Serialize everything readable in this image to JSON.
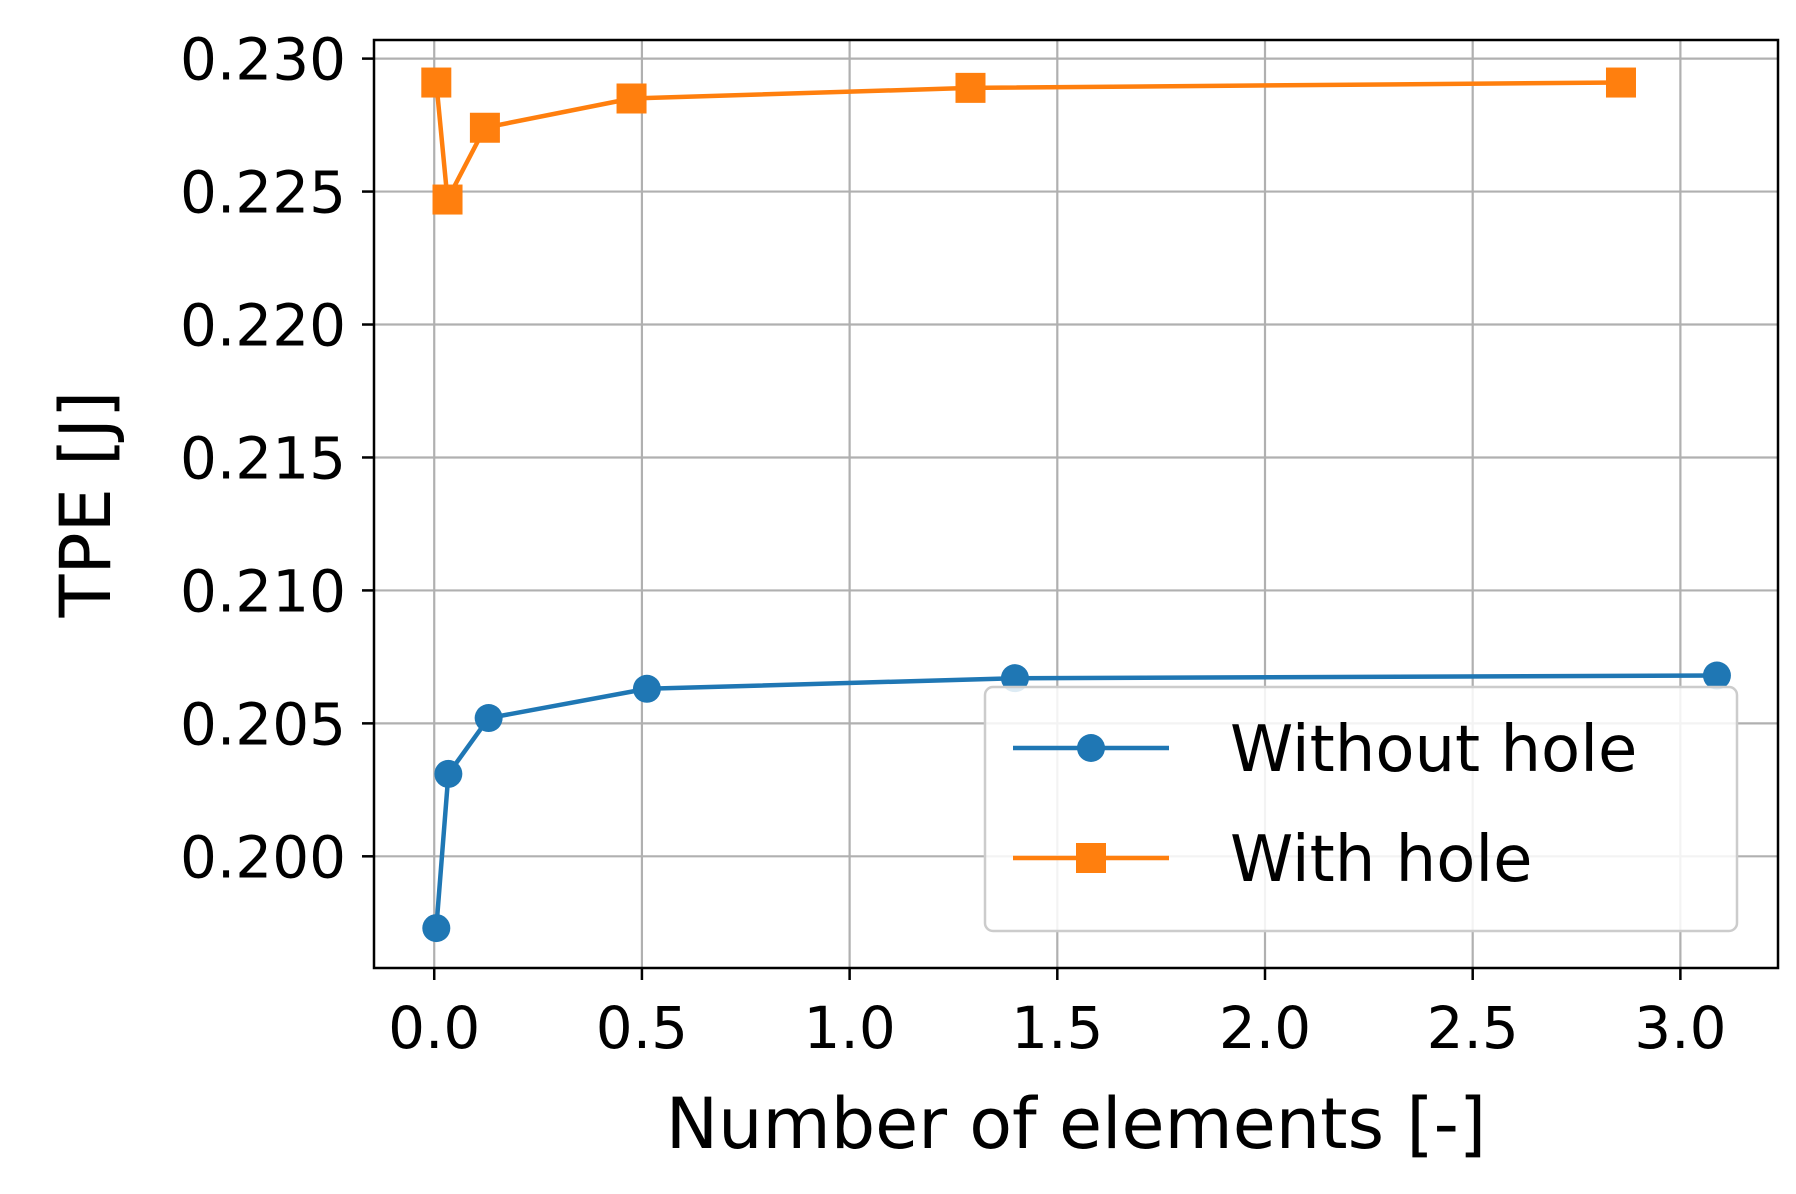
{
  "chart_data": {
    "type": "line",
    "xlabel": "Number of elements [-]",
    "ylabel": "TPE [J]",
    "xlim": [
      -0.145,
      3.235
    ],
    "ylim": [
      0.1958,
      0.2307
    ],
    "xticks": [
      "0.0",
      "0.5",
      "1.0",
      "1.5",
      "2.0",
      "2.5",
      "3.0"
    ],
    "yticks": [
      "0.200",
      "0.205",
      "0.210",
      "0.215",
      "0.220",
      "0.225",
      "0.230"
    ],
    "grid": true,
    "legend_position": "lower right",
    "series": [
      {
        "name": "Without hole",
        "color": "#1f77b4",
        "marker": "circle",
        "x": [
          0.005,
          0.034,
          0.131,
          0.512,
          1.398,
          3.088
        ],
        "y": [
          0.1973,
          0.2031,
          0.2052,
          0.2063,
          0.2067,
          0.2068
        ]
      },
      {
        "name": "With hole",
        "color": "#ff7f0e",
        "marker": "square",
        "x": [
          0.005,
          0.032,
          0.122,
          0.475,
          1.291,
          2.857
        ],
        "y": [
          0.2291,
          0.2247,
          0.2274,
          0.2285,
          0.2289,
          0.2291
        ]
      }
    ]
  }
}
